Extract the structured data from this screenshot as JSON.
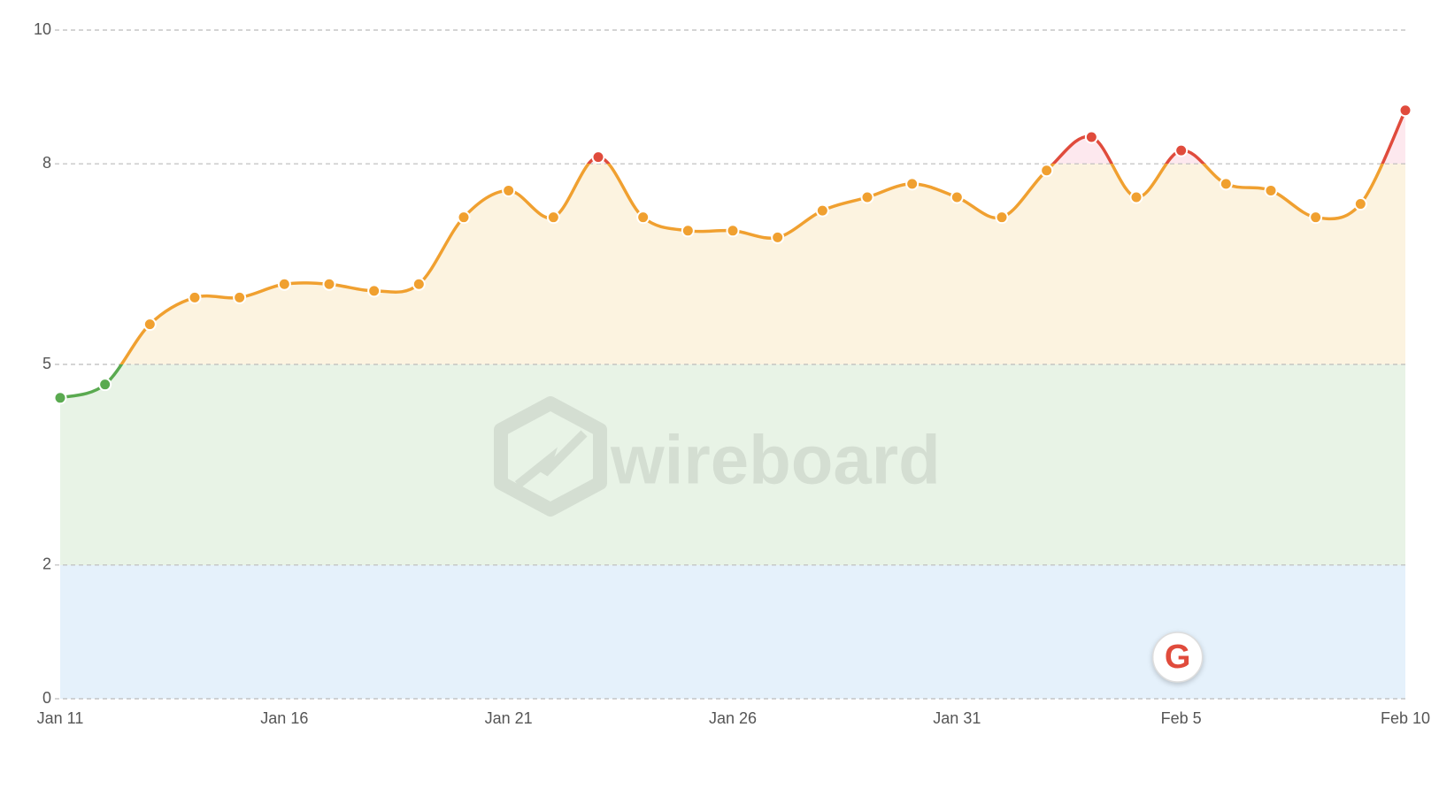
{
  "chart_data": {
    "type": "line",
    "watermark": "wireboard",
    "event_marker_label": "G",
    "categories": [
      "Jan 11",
      null,
      null,
      null,
      null,
      "Jan 16",
      null,
      null,
      null,
      null,
      "Jan 21",
      null,
      null,
      null,
      null,
      "Jan 26",
      null,
      null,
      null,
      null,
      "Jan 31",
      null,
      null,
      null,
      null,
      "Feb 5",
      null,
      null,
      null,
      null,
      "Feb 10"
    ],
    "values": [
      4.5,
      4.7,
      5.6,
      6.0,
      6.0,
      6.2,
      6.2,
      6.1,
      6.2,
      7.2,
      7.6,
      7.2,
      8.1,
      7.2,
      7.0,
      7.0,
      6.9,
      7.3,
      7.5,
      7.7,
      7.5,
      7.2,
      7.9,
      8.4,
      7.5,
      8.2,
      7.7,
      7.6,
      7.2,
      7.4,
      8.8
    ],
    "ylim": [
      0,
      10
    ],
    "yticks": [
      0,
      2,
      5,
      8,
      10
    ],
    "grid": true,
    "bands": [
      {
        "from": 0,
        "to": 2,
        "fill": "#e5f1fb",
        "color": "#4a90d9"
      },
      {
        "from": 2,
        "to": 5,
        "fill": "#e8f3e6",
        "color": "#5aaa50"
      },
      {
        "from": 5,
        "to": 8,
        "fill": "#fcf3e0",
        "color": "#f0a030"
      },
      {
        "from": 8,
        "to": 10,
        "fill": "#fde8ee",
        "color": "#e04b3c"
      }
    ]
  }
}
